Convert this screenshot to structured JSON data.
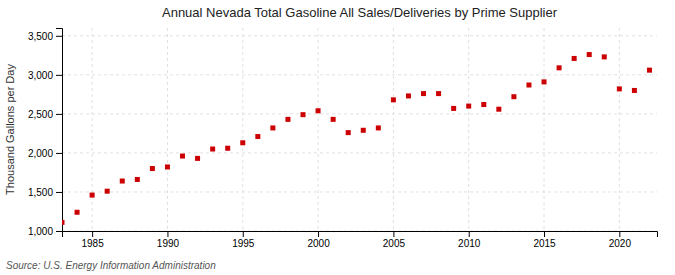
{
  "chart_data": {
    "type": "scatter",
    "title": "Annual Nevada Total Gasoline All Sales/Deliveries by Prime Supplier",
    "ylabel": "Thousand Gallons per Day",
    "annotation": "Source: U.S. Energy Information Administration",
    "x": [
      1983,
      1984,
      1985,
      1986,
      1987,
      1988,
      1989,
      1990,
      1991,
      1992,
      1993,
      1994,
      1995,
      1996,
      1997,
      1998,
      1999,
      2000,
      2001,
      2002,
      2003,
      2004,
      2005,
      2006,
      2007,
      2008,
      2009,
      2010,
      2011,
      2012,
      2013,
      2014,
      2015,
      2016,
      2017,
      2018,
      2019,
      2020,
      2021,
      2022
    ],
    "values": [
      1110,
      1240,
      1460,
      1510,
      1640,
      1660,
      1800,
      1820,
      1960,
      1930,
      2050,
      2060,
      2130,
      2210,
      2320,
      2430,
      2490,
      2540,
      2430,
      2260,
      2290,
      2320,
      2680,
      2730,
      2760,
      2760,
      2570,
      2600,
      2620,
      2560,
      2720,
      2870,
      2910,
      3090,
      3210,
      3260,
      3230,
      2820,
      2800,
      3060
    ],
    "color": "#cc0000",
    "marker": "square",
    "xlim": [
      1983.0,
      2022.5
    ],
    "ylim": [
      1000,
      3600
    ],
    "xticks": [
      1985,
      1990,
      1995,
      2000,
      2005,
      2010,
      2015,
      2020
    ],
    "yticks": [
      {
        "value": 1000,
        "label": "1,000"
      },
      {
        "value": 1500,
        "label": "1,500"
      },
      {
        "value": 2000,
        "label": "2,000"
      },
      {
        "value": 2500,
        "label": "2,500"
      },
      {
        "value": 3000,
        "label": "3,000"
      },
      {
        "value": 3500,
        "label": "3,500"
      }
    ],
    "grid": true
  }
}
